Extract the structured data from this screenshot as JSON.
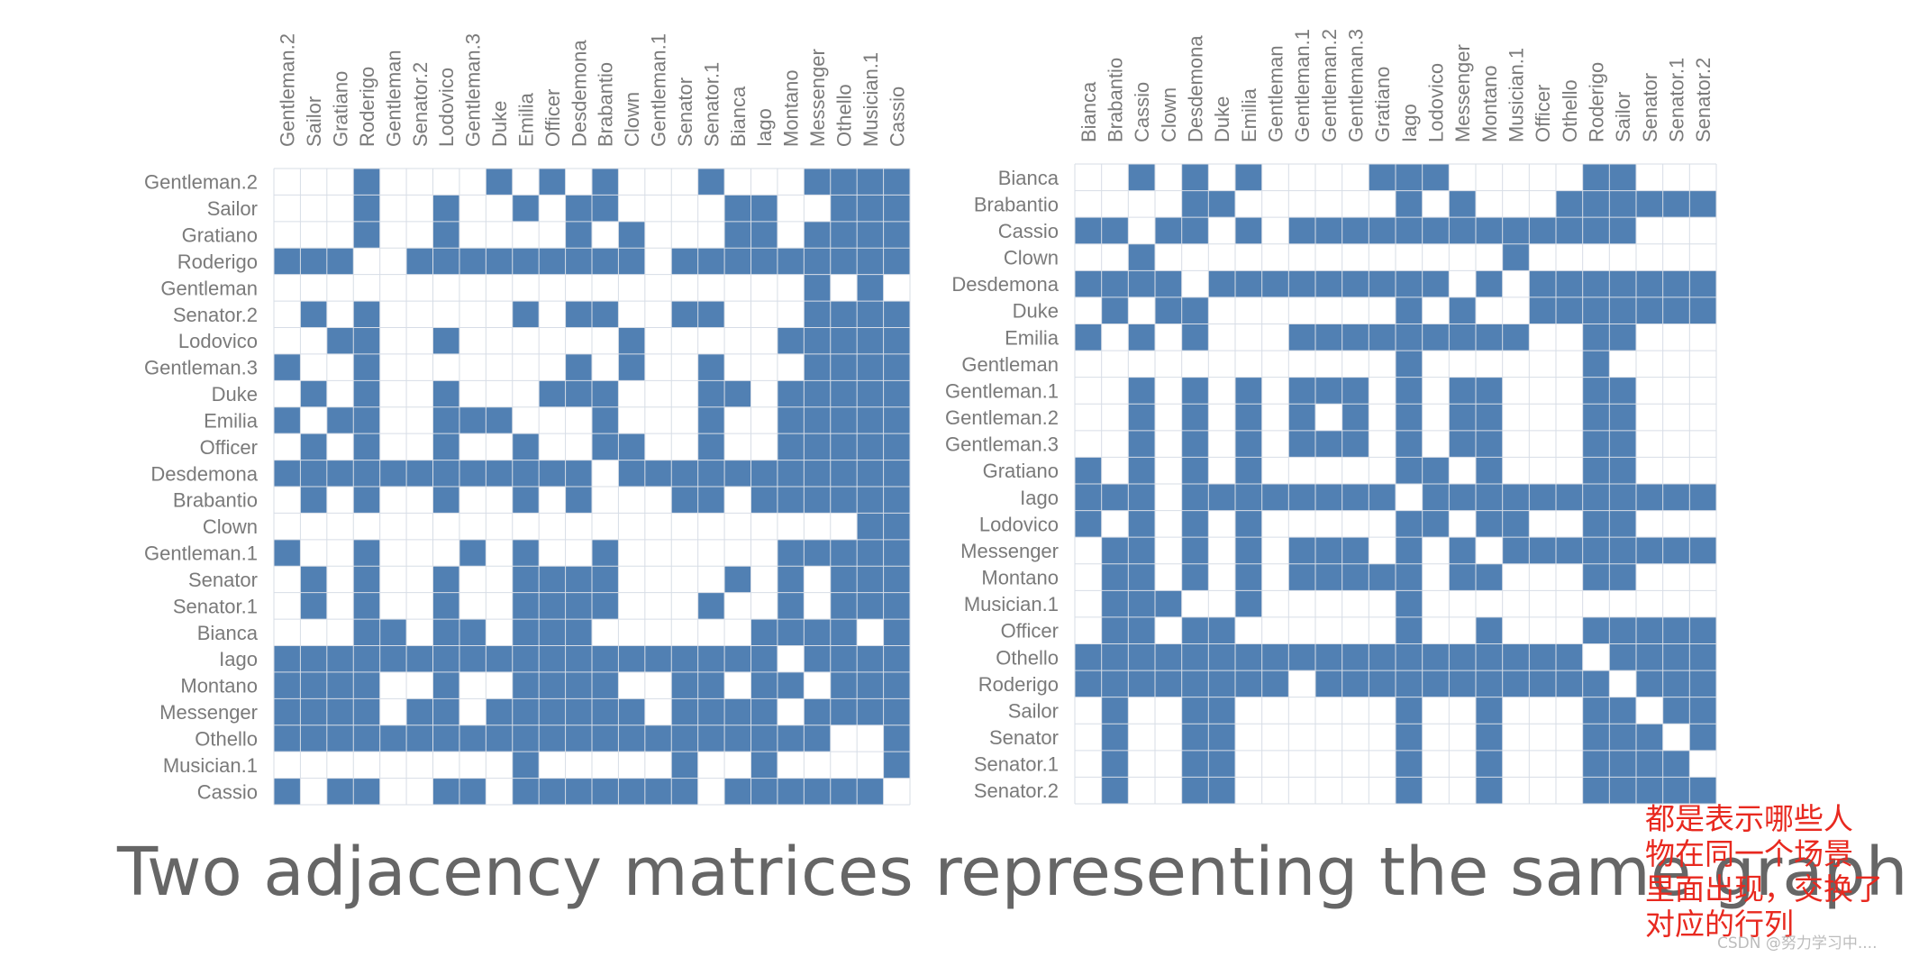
{
  "chart_data": [
    {
      "type": "heatmap",
      "name": "matrix-left",
      "labels": [
        "Gentleman.2",
        "Sailor",
        "Gratiano",
        "Roderigo",
        "Gentleman",
        "Senator.2",
        "Lodovico",
        "Gentleman.3",
        "Duke",
        "Emilia",
        "Officer",
        "Desdemona",
        "Brabantio",
        "Clown",
        "Gentleman.1",
        "Senator",
        "Senator.1",
        "Bianca",
        "Iago",
        "Montano",
        "Messenger",
        "Othello",
        "Musician.1",
        "Cassio"
      ],
      "matrix": [
        "000100001010100010001111",
        "000100100101100001100111",
        "000100100001010001101111",
        "111001111111110111111111",
        "000000000000000000001010",
        "010100000101100110001111",
        "001100100000010000011111",
        "100100000001010010001111",
        "010100100011100011011111",
        "101100111000100010011111",
        "010100100100110010011111",
        "111111111111011111111111",
        "010100100101000110111111",
        "000000000000000000000011",
        "100100010100100000011111",
        "010100100111100001010111",
        "010100100111100010010111",
        "000110110111000000111101",
        "111111111111111111101111",
        "111100100111100110110111",
        "111101101111110111101111",
        "111111111111111111111001",
        "000000000100000100100001",
        "101100110111111101111110"
      ],
      "colors": {
        "filled": "#5180b3",
        "empty": "#ffffff",
        "grid": "#d7dde6",
        "label": "#7a7a7a"
      }
    },
    {
      "type": "heatmap",
      "name": "matrix-right",
      "labels": [
        "Bianca",
        "Brabantio",
        "Cassio",
        "Clown",
        "Desdemona",
        "Duke",
        "Emilia",
        "Gentleman",
        "Gentleman.1",
        "Gentleman.2",
        "Gentleman.3",
        "Gratiano",
        "Iago",
        "Lodovico",
        "Messenger",
        "Montano",
        "Musician.1",
        "Officer",
        "Othello",
        "Roderigo",
        "Sailor",
        "Senator",
        "Senator.1",
        "Senator.2"
      ],
      "matrix": [
        "001010100001110000011000",
        "000011000000101000111111",
        "110110101111111111111000",
        "001000000000000010000000",
        "111101111111110101111111",
        "010110000000101001111111",
        "101010001111111110011000",
        "000000000000100000010000",
        "001010101110101100011000",
        "001010101010101100011000",
        "001010101110101100011000",
        "101010100000110100011000",
        "111011111111011111111111",
        "101010100000110110011000",
        "011010101110101011111111",
        "011010101111101100011000",
        "011100100000100000000000",
        "011011000000100100011111",
        "111111111111111111101111",
        "111111110111111111110111",
        "010011000000100100011011",
        "010011000000100100011101",
        "010011000000100100011110",
        "010011000000100100011111"
      ],
      "colors": {
        "filled": "#5180b3",
        "empty": "#ffffff",
        "grid": "#d7dde6",
        "label": "#7a7a7a"
      }
    }
  ],
  "caption": "Two adjacency matrices representing the same graph.",
  "note": [
    "都是表示哪些人",
    "物在同一个场景",
    "里面出现，交换了",
    "对应的行列"
  ],
  "watermark": "CSDN @努力学习中...."
}
